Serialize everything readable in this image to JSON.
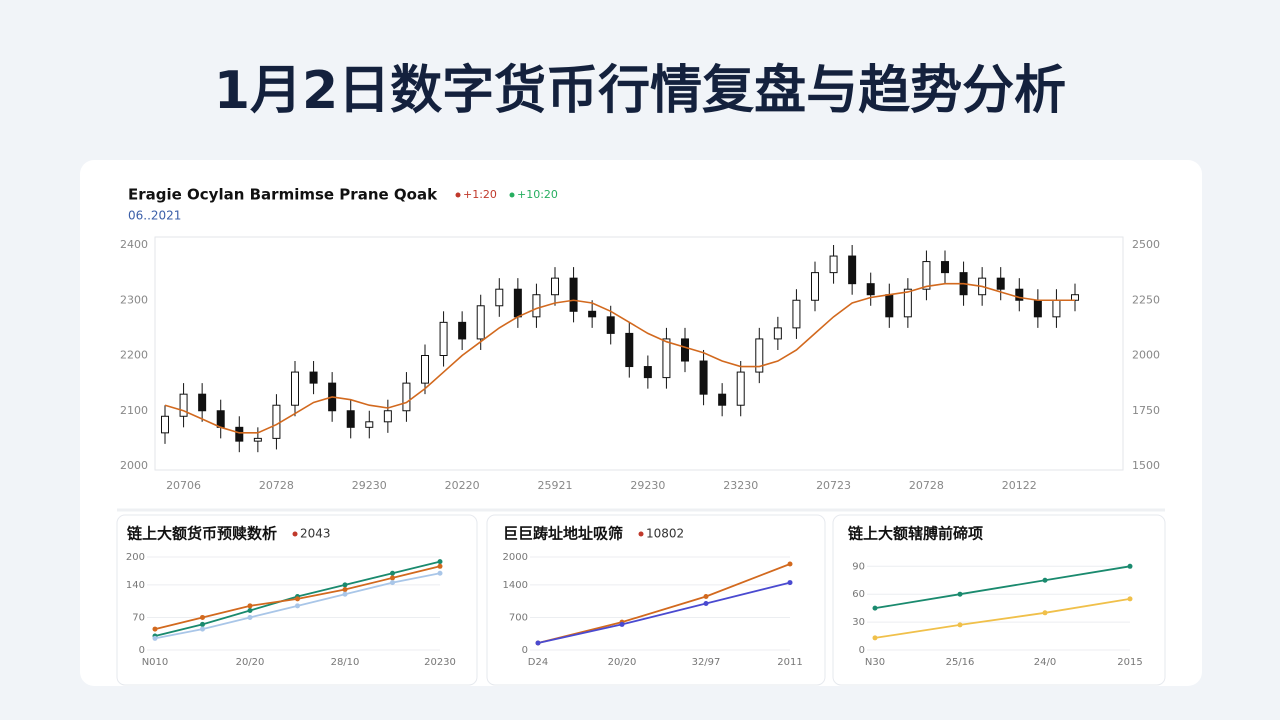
{
  "page_title": "1月2日数字货币行情复盘与趋势分析",
  "chart_data": [
    {
      "type": "candlestick",
      "title": "Eragie Ocylan Barmimse Prane Qoak",
      "subtitle": "06..2021",
      "legend": [
        {
          "label": "+1:20",
          "color": "#c0392b"
        },
        {
          "label": "+10:20",
          "color": "#27ae60"
        }
      ],
      "categories": [
        null,
        "20706",
        null,
        null,
        null,
        null,
        "20728",
        null,
        null,
        null,
        null,
        "29230",
        null,
        null,
        null,
        null,
        "20220",
        null,
        null,
        null,
        null,
        "25921",
        null,
        null,
        null,
        null,
        "29230",
        null,
        null,
        null,
        null,
        "23230",
        null,
        null,
        null,
        null,
        "20723",
        null,
        null,
        null,
        null,
        "20728",
        null,
        null,
        null,
        null,
        "20122",
        null,
        null,
        null
      ],
      "open": [
        2060,
        2090,
        2130,
        2100,
        2070,
        2045,
        2050,
        2110,
        2170,
        2150,
        2100,
        2070,
        2080,
        2100,
        2150,
        2200,
        2260,
        2230,
        2290,
        2320,
        2270,
        2310,
        2340,
        2280,
        2270,
        2240,
        2180,
        2160,
        2230,
        2190,
        2130,
        2110,
        2170,
        2230,
        2250,
        2300,
        2350,
        2380,
        2330,
        2310,
        2270,
        2320,
        2370,
        2350,
        2310,
        2340,
        2320,
        2300,
        2270,
        2300
      ],
      "high": [
        2110,
        2150,
        2150,
        2120,
        2090,
        2070,
        2130,
        2190,
        2190,
        2170,
        2120,
        2100,
        2120,
        2170,
        2220,
        2280,
        2280,
        2310,
        2340,
        2340,
        2330,
        2360,
        2360,
        2300,
        2290,
        2260,
        2200,
        2250,
        2250,
        2210,
        2150,
        2190,
        2250,
        2270,
        2320,
        2370,
        2400,
        2400,
        2350,
        2330,
        2340,
        2390,
        2390,
        2370,
        2360,
        2360,
        2340,
        2320,
        2320,
        2330
      ],
      "low": [
        2040,
        2070,
        2080,
        2050,
        2025,
        2025,
        2030,
        2090,
        2130,
        2080,
        2050,
        2050,
        2060,
        2080,
        2130,
        2180,
        2210,
        2210,
        2270,
        2250,
        2250,
        2290,
        2260,
        2250,
        2220,
        2160,
        2140,
        2140,
        2170,
        2110,
        2090,
        2090,
        2150,
        2210,
        2230,
        2280,
        2330,
        2310,
        2290,
        2250,
        2250,
        2300,
        2330,
        2290,
        2290,
        2300,
        2280,
        2250,
        2250,
        2280
      ],
      "close": [
        2090,
        2130,
        2100,
        2070,
        2045,
        2050,
        2110,
        2170,
        2150,
        2100,
        2070,
        2080,
        2100,
        2150,
        2200,
        2260,
        2230,
        2290,
        2320,
        2270,
        2310,
        2340,
        2280,
        2270,
        2240,
        2180,
        2160,
        2230,
        2190,
        2130,
        2110,
        2170,
        2230,
        2250,
        2300,
        2350,
        2380,
        2330,
        2310,
        2270,
        2320,
        2370,
        2350,
        2310,
        2340,
        2320,
        2300,
        2270,
        2300,
        2310
      ],
      "up_color": "#ffffff",
      "down_color": "#111111",
      "ma": {
        "color": "#d2691e",
        "values": [
          2110,
          2100,
          2085,
          2070,
          2060,
          2060,
          2075,
          2095,
          2115,
          2125,
          2120,
          2110,
          2105,
          2115,
          2140,
          2170,
          2200,
          2225,
          2250,
          2270,
          2285,
          2295,
          2300,
          2295,
          2280,
          2260,
          2240,
          2225,
          2215,
          2205,
          2190,
          2180,
          2180,
          2190,
          2210,
          2240,
          2270,
          2295,
          2305,
          2310,
          2315,
          2325,
          2330,
          2330,
          2325,
          2315,
          2305,
          2300,
          2300,
          2300
        ]
      },
      "ylim": [
        2000,
        2400
      ],
      "yticks": [
        2000,
        2100,
        2200,
        2300,
        2400
      ],
      "y2lim": [
        1500,
        2500
      ],
      "y2ticks": [
        1500,
        1750,
        2000,
        2250,
        2500
      ]
    },
    {
      "type": "line",
      "title": "链上大额货币预赎数析",
      "badge": "2043",
      "categories": [
        "N010",
        null,
        "20/20",
        null,
        "28/10",
        null,
        "20230"
      ],
      "series": [
        {
          "color": "#1a8a6e",
          "values": [
            30,
            55,
            85,
            115,
            140,
            165,
            190
          ]
        },
        {
          "color": "#d2691e",
          "values": [
            45,
            70,
            95,
            110,
            130,
            155,
            180
          ]
        },
        {
          "color": "#a9c6e8",
          "values": [
            25,
            45,
            70,
            95,
            120,
            145,
            165
          ]
        }
      ],
      "ylim": [
        0,
        200
      ],
      "yticks": [
        0,
        70,
        140,
        200
      ]
    },
    {
      "type": "line",
      "title": "巨巨踌址地址吸筛",
      "badge": "10802",
      "categories": [
        "D24",
        "20/20",
        "32/97",
        "2011"
      ],
      "series": [
        {
          "color": "#d2691e",
          "values": [
            150,
            600,
            1150,
            1850
          ]
        },
        {
          "color": "#4a4ad0",
          "values": [
            150,
            550,
            1000,
            1450
          ]
        }
      ],
      "ylim": [
        0,
        2000
      ],
      "yticks": [
        0,
        700,
        1400,
        2000
      ]
    },
    {
      "type": "line",
      "title": "链上大额辖膊前碲项",
      "categories": [
        "N30",
        "25/16",
        "24/0",
        "2015"
      ],
      "series": [
        {
          "color": "#1a8a6e",
          "values": [
            45,
            60,
            75,
            90
          ]
        },
        {
          "color": "#f0c04a",
          "values": [
            13,
            27,
            40,
            55
          ]
        }
      ],
      "ylim": [
        0,
        100
      ],
      "yticks": [
        0,
        30,
        60,
        90
      ]
    }
  ]
}
